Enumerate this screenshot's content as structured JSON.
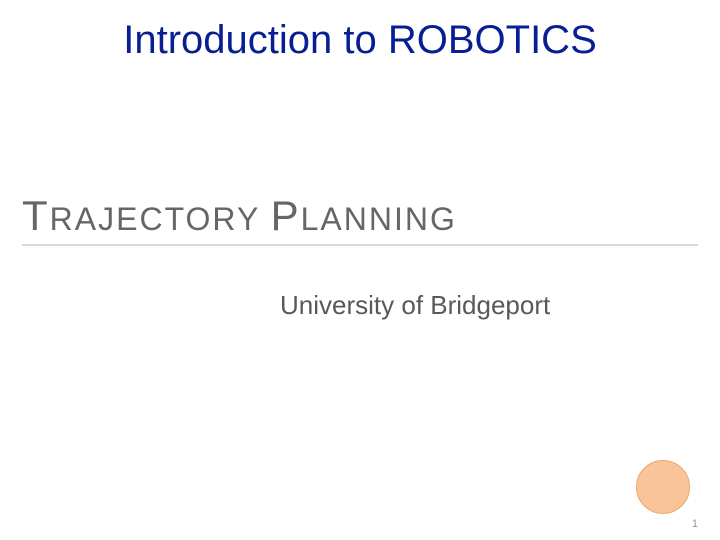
{
  "course_title": "Introduction to ROBOTICS",
  "main_title": {
    "word1_cap": "T",
    "word1_rest": "RAJECTORY",
    "word2_cap": "P",
    "word2_rest": "LANNING"
  },
  "institution": "University of Bridgeport",
  "page_number": "1",
  "styling": {
    "course_title_color": "#081e93",
    "main_title_color": "#666666",
    "institution_color": "#595959",
    "underline_color": "#d9d9d9",
    "accent_circle_fill": "#f9c499",
    "accent_circle_border": "#e8a968",
    "page_number_color": "#999999",
    "background_color": "#ffffff",
    "course_title_fontsize": 40,
    "main_title_cap_fontsize": 42,
    "main_title_body_fontsize": 32,
    "institution_fontsize": 26,
    "page_number_fontsize": 11,
    "accent_circle_diameter": 54
  }
}
